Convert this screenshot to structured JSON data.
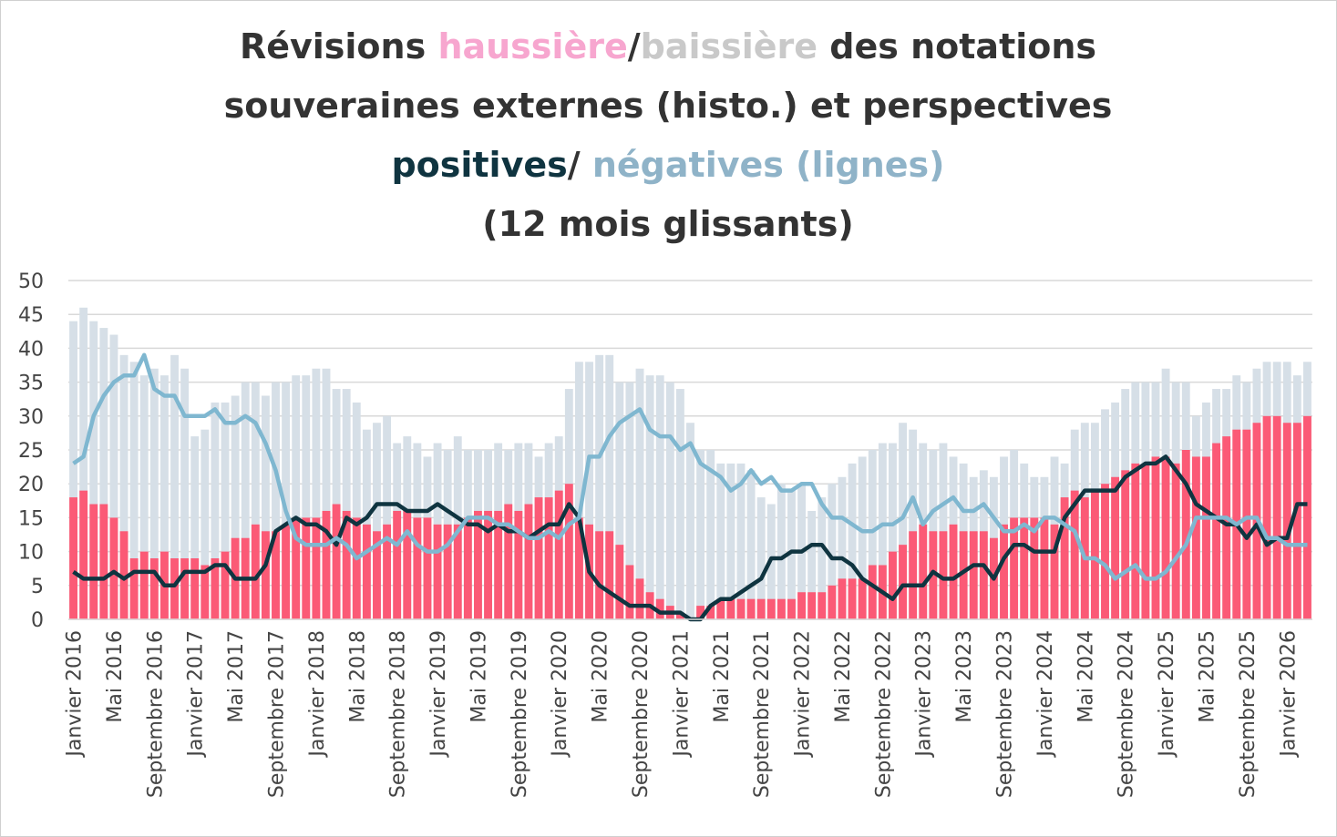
{
  "chart_data": {
    "type": "combo",
    "title_lines": [
      [
        {
          "text": "Révisions ",
          "color": "#333333"
        },
        {
          "text": "haussière",
          "color": "#f7a6cf"
        },
        {
          "text": "/",
          "color": "#333333"
        },
        {
          "text": "baissière",
          "color": "#c9c9c9"
        },
        {
          "text": " des notations",
          "color": "#333333"
        }
      ],
      [
        {
          "text": "souveraines externes (histo.) et perspectives",
          "color": "#333333"
        }
      ],
      [
        {
          "text": "positives",
          "color": "#0f3440"
        },
        {
          "text": "/ ",
          "color": "#333333"
        },
        {
          "text": "négatives (lignes)",
          "color": "#8fb3c8"
        }
      ],
      [
        {
          "text": "(12 mois glissants)",
          "color": "#333333"
        }
      ]
    ],
    "categories": [
      "Janvier 2016",
      null,
      null,
      null,
      "Mai 2016",
      null,
      null,
      null,
      "Septembre 2016",
      null,
      null,
      null,
      "Janvier 2017",
      null,
      null,
      null,
      "Mai 2017",
      null,
      null,
      null,
      "Septembre 2017",
      null,
      null,
      null,
      "Janvier 2018",
      null,
      null,
      null,
      "Mai 2018",
      null,
      null,
      null,
      "Septembre 2018",
      null,
      null,
      null,
      "Janvier 2019",
      null,
      null,
      null,
      "Mai 2019",
      null,
      null,
      null,
      "Septembre 2019",
      null,
      null,
      null,
      "Janvier 2020",
      null,
      null,
      null,
      "Mai 2020",
      null,
      null,
      null,
      "Septembre 2020",
      null,
      null,
      null,
      "Janvier 2021",
      null,
      null,
      null,
      "Mai 2021",
      null,
      null,
      null,
      "Septembre 2021",
      null,
      null,
      null,
      "Janvier 2022",
      null,
      null,
      null,
      "Mai 2022",
      null,
      null,
      null,
      "Septembre 2022",
      null,
      null,
      null,
      "Janvier 2023",
      null,
      null,
      null,
      "Mai 2023",
      null,
      null,
      null,
      "Septembre 2023",
      null,
      null,
      null,
      "Janvier 2024",
      null,
      null,
      null,
      "Mai 2024",
      null,
      null,
      null,
      "Septembre 2024",
      null,
      null,
      null,
      "Janvier 2025",
      null,
      null,
      null,
      "Mai 2025",
      null,
      null,
      null,
      "Septembre 2025",
      null,
      null,
      null,
      "Janvier 2026",
      null,
      null
    ],
    "series": [
      {
        "type": "bar",
        "color": "#d6dfe7",
        "values": [
          44,
          46,
          44,
          43,
          42,
          39,
          38,
          36,
          37,
          36,
          39,
          37,
          27,
          28,
          32,
          32,
          33,
          35,
          35,
          33,
          35,
          35,
          36,
          36,
          37,
          37,
          34,
          34,
          32,
          28,
          29,
          30,
          26,
          27,
          26,
          24,
          26,
          25,
          27,
          25,
          25,
          25,
          26,
          25,
          26,
          26,
          24,
          26,
          27,
          34,
          38,
          38,
          39,
          39,
          35,
          35,
          37,
          36,
          36,
          35,
          34,
          29,
          25,
          25,
          23,
          23,
          23,
          22,
          18,
          17,
          20,
          19,
          20,
          16,
          18,
          20,
          21,
          23,
          24,
          25,
          26,
          26,
          29,
          28,
          26,
          25,
          26,
          24,
          23,
          21,
          22,
          21,
          24,
          25,
          23,
          21,
          21,
          24,
          23,
          28,
          29,
          29,
          31,
          32,
          34,
          35,
          35,
          35,
          37,
          35,
          35,
          30,
          32,
          34,
          34,
          36,
          35,
          37,
          38,
          38,
          38,
          36,
          38
        ]
      },
      {
        "type": "bar",
        "color": "#fb5a76",
        "values": [
          18,
          19,
          17,
          17,
          15,
          13,
          9,
          10,
          9,
          10,
          9,
          9,
          9,
          8,
          9,
          10,
          12,
          12,
          14,
          13,
          13,
          14,
          15,
          15,
          15,
          16,
          17,
          16,
          15,
          14,
          13,
          14,
          16,
          16,
          15,
          15,
          14,
          14,
          14,
          15,
          16,
          16,
          16,
          17,
          16,
          17,
          18,
          18,
          19,
          20,
          15,
          14,
          13,
          13,
          11,
          8,
          6,
          4,
          3,
          2,
          1,
          0,
          2,
          2,
          3,
          3,
          3,
          3,
          3,
          3,
          3,
          3,
          4,
          4,
          4,
          5,
          6,
          6,
          6,
          8,
          8,
          10,
          11,
          13,
          14,
          13,
          13,
          14,
          13,
          13,
          13,
          12,
          14,
          15,
          15,
          15,
          15,
          14,
          18,
          19,
          18,
          19,
          20,
          21,
          22,
          23,
          23,
          24,
          24,
          23,
          25,
          24,
          24,
          26,
          27,
          28,
          28,
          29,
          30,
          30,
          29,
          29,
          30
        ]
      },
      {
        "type": "line",
        "color": "#0f3440",
        "values": [
          7,
          6,
          6,
          6,
          7,
          6,
          7,
          7,
          7,
          5,
          5,
          7,
          7,
          7,
          8,
          8,
          6,
          6,
          6,
          8,
          13,
          14,
          15,
          14,
          14,
          13,
          11,
          15,
          14,
          15,
          17,
          17,
          17,
          16,
          16,
          16,
          17,
          16,
          15,
          14,
          14,
          13,
          14,
          13,
          13,
          12,
          13,
          14,
          14,
          17,
          15,
          7,
          5,
          4,
          3,
          2,
          2,
          2,
          1,
          1,
          1,
          0,
          0,
          2,
          3,
          3,
          4,
          5,
          6,
          9,
          9,
          10,
          10,
          11,
          11,
          9,
          9,
          8,
          6,
          5,
          4,
          3,
          5,
          5,
          5,
          7,
          6,
          6,
          7,
          8,
          8,
          6,
          9,
          11,
          11,
          10,
          10,
          10,
          15,
          17,
          19,
          19,
          19,
          19,
          21,
          22,
          23,
          23,
          24,
          22,
          20,
          17,
          16,
          15,
          14,
          14,
          12,
          14,
          11,
          12,
          12,
          17,
          17
        ]
      },
      {
        "type": "line",
        "color": "#7fb7d0",
        "values": [
          23,
          24,
          30,
          33,
          35,
          36,
          36,
          39,
          34,
          33,
          33,
          30,
          30,
          30,
          31,
          29,
          29,
          30,
          29,
          26,
          22,
          16,
          12,
          11,
          11,
          11,
          12,
          11,
          9,
          10,
          11,
          12,
          11,
          13,
          11,
          10,
          10,
          11,
          13,
          15,
          15,
          15,
          14,
          14,
          13,
          12,
          12,
          13,
          12,
          14,
          15,
          24,
          24,
          27,
          29,
          30,
          31,
          28,
          27,
          27,
          25,
          26,
          23,
          22,
          21,
          19,
          20,
          22,
          20,
          21,
          19,
          19,
          20,
          20,
          17,
          15,
          15,
          14,
          13,
          13,
          14,
          14,
          15,
          18,
          14,
          16,
          17,
          18,
          16,
          16,
          17,
          15,
          13,
          13,
          14,
          13,
          15,
          15,
          14,
          13,
          9,
          9,
          8,
          6,
          7,
          8,
          6,
          6,
          7,
          9,
          11,
          15,
          15,
          15,
          15,
          14,
          15,
          15,
          12,
          12,
          11,
          11,
          11
        ]
      }
    ],
    "ylim": [
      0,
      50
    ],
    "yticks": [
      0,
      5,
      10,
      15,
      20,
      25,
      30,
      35,
      40,
      45,
      50
    ],
    "grid": true
  }
}
